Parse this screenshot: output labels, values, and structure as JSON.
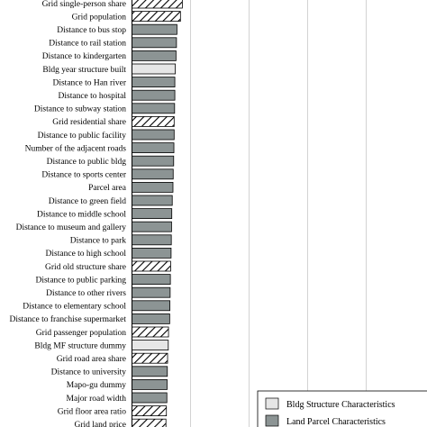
{
  "chart_data": {
    "type": "bar",
    "orientation": "horizontal",
    "title": "",
    "xlabel": "",
    "ylabel": "",
    "grid": true,
    "legend_position": "bottom-right",
    "xlim": [
      0,
      1
    ],
    "categories": [
      "Grid single-person share",
      "Grid population",
      "Distance to bus stop",
      "Distance to rail station",
      "Distance to kindergarten",
      "Bldg year structure built",
      "Distance to Han river",
      "Distance to hospital",
      "Distance to subway station",
      "Grid residential share",
      "Distance to public facility",
      "Number of the adjacent roads",
      "Distance to public bldg",
      "Distance to sports center",
      "Parcel area",
      "Distance to green field",
      "Distance to middle school",
      "Distance to museum and gallery",
      "Distance to park",
      "Distance to high school",
      "Grid old structure share",
      "Distance to public parking",
      "Distance to other rivers",
      "Distance to elementary school",
      "Distance to franchise supermarket",
      "Grid passenger population",
      "Bldg MF structure dummy",
      "Grid road area share",
      "Distance to university",
      "Mapo-gu dummy",
      "Major road width",
      "Grid floor area ratio",
      "Grid land price"
    ],
    "values": [
      0.215,
      0.207,
      0.192,
      0.19,
      0.188,
      0.185,
      0.183,
      0.183,
      0.182,
      0.18,
      0.18,
      0.179,
      0.178,
      0.176,
      0.175,
      0.172,
      0.17,
      0.169,
      0.168,
      0.167,
      0.165,
      0.164,
      0.163,
      0.162,
      0.161,
      0.156,
      0.155,
      0.152,
      0.151,
      0.15,
      0.149,
      0.147,
      0.145
    ],
    "group": [
      "grid",
      "grid",
      "land",
      "land",
      "land",
      "bldg",
      "land",
      "land",
      "land",
      "grid",
      "land",
      "land",
      "land",
      "land",
      "land",
      "land",
      "land",
      "land",
      "land",
      "land",
      "grid",
      "land",
      "land",
      "land",
      "land",
      "grid",
      "bldg",
      "grid",
      "land",
      "land",
      "land",
      "grid",
      "grid"
    ],
    "legend": [
      {
        "key": "bldg",
        "label": "Bldg Structure Characteristics"
      },
      {
        "key": "land",
        "label": "Land Parcel Characteristics"
      }
    ],
    "colors": {
      "bldg": "#e6e6e6",
      "land": "#8c9494",
      "grid": "#ffffff",
      "outline": "#000000",
      "grid_line": "#c8c8c8"
    }
  }
}
